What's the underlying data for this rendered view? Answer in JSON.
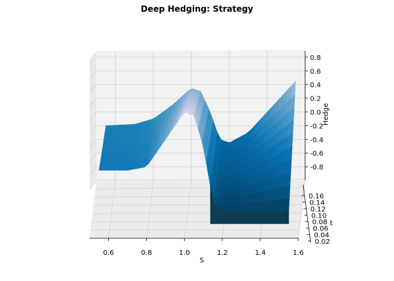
{
  "chart_data": {
    "type": "surface3d",
    "title": "Deep Hedging: Strategy",
    "xlabel": "S",
    "ylabel": "t",
    "zlabel": "Hedge",
    "x_ticks": [
      "0.6",
      "0.8",
      "1.0",
      "1.2",
      "1.4",
      "1.6"
    ],
    "y_ticks": [
      "0.02",
      "0.04",
      "0.06",
      "0.08",
      "0.10",
      "0.12",
      "0.14",
      "0.16"
    ],
    "z_ticks": [
      "-0.8",
      "-0.6",
      "-0.4",
      "-0.2",
      "0.0",
      "0.2",
      "0.4",
      "0.6",
      "0.8"
    ],
    "xlim": [
      0.5,
      1.6
    ],
    "ylim": [
      0.02,
      0.16
    ],
    "zlim": [
      -0.9,
      0.85
    ],
    "colormap": "PuBu",
    "colormap_stops": [
      "#fff7fb",
      "#d0d1e6",
      "#74a9cf",
      "#3690c0",
      "#0570b0",
      "#045a8d",
      "#023858"
    ],
    "surface_profile": {
      "S": [
        0.55,
        0.7,
        0.8,
        0.9,
        1.0,
        1.05,
        1.1,
        1.15,
        1.2,
        1.3,
        1.4,
        1.55
      ],
      "hedge_near_expiry": [
        -0.25,
        -0.25,
        -0.2,
        0.2,
        0.6,
        0.55,
        0.1,
        -0.7,
        -0.85,
        -0.85,
        -0.85,
        -0.85
      ],
      "hedge_far_expiry": [
        -0.2,
        -0.18,
        -0.1,
        0.1,
        0.35,
        0.3,
        0.0,
        -0.4,
        -0.45,
        -0.3,
        0.0,
        0.45
      ]
    }
  }
}
